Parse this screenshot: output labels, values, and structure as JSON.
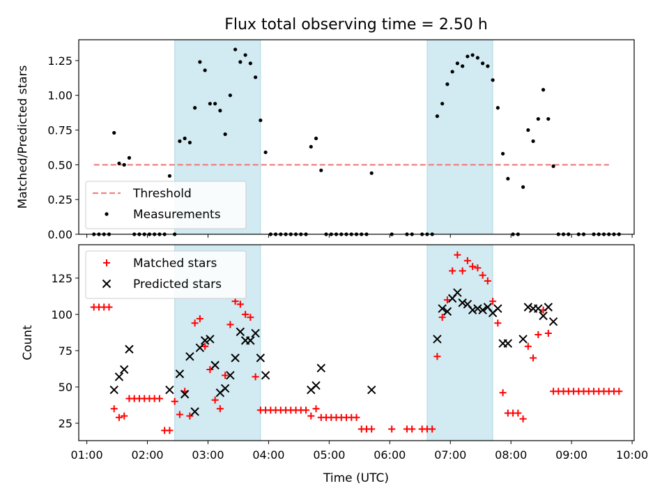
{
  "figure": {
    "title": "Flux total observing time = 2.50 h",
    "xlabel": "Time (UTC)"
  },
  "chart_data": [
    {
      "type": "scatter",
      "ylabel": "Matched/Predicted stars",
      "xlim": [
        "00:52",
        "10:02"
      ],
      "ylim": [
        0,
        1.4
      ],
      "yticks": [
        "0.00",
        "0.25",
        "0.50",
        "0.75",
        "1.00",
        "1.25"
      ],
      "grid": false,
      "legend_position": "lower-left",
      "shaded_intervals": [
        [
          "02:27",
          "03:52"
        ],
        [
          "06:37",
          "07:42"
        ]
      ],
      "series": [
        {
          "name": "Threshold",
          "kind": "dashed-line",
          "color": "#f08080",
          "x": [
            "01:07",
            "09:37"
          ],
          "y": [
            0.5,
            0.5
          ]
        },
        {
          "name": "Measurements",
          "kind": "dots",
          "color": "#000000",
          "points": [
            [
              "01:07",
              0
            ],
            [
              "01:12",
              0
            ],
            [
              "01:17",
              0
            ],
            [
              "01:22",
              0
            ],
            [
              "01:27",
              0.73
            ],
            [
              "01:32",
              0.51
            ],
            [
              "01:37",
              0.5
            ],
            [
              "01:42",
              0.55
            ],
            [
              "01:47",
              0
            ],
            [
              "01:52",
              0
            ],
            [
              "01:57",
              0
            ],
            [
              "02:02",
              0
            ],
            [
              "02:07",
              0
            ],
            [
              "02:12",
              0
            ],
            [
              "02:17",
              0
            ],
            [
              "02:22",
              0.42
            ],
            [
              "02:27",
              0
            ],
            [
              "02:32",
              0.67
            ],
            [
              "02:37",
              0.69
            ],
            [
              "02:42",
              0.66
            ],
            [
              "02:47",
              0.91
            ],
            [
              "02:52",
              1.24
            ],
            [
              "02:57",
              1.18
            ],
            [
              "03:02",
              0.94
            ],
            [
              "03:07",
              0.94
            ],
            [
              "03:12",
              0.89
            ],
            [
              "03:17",
              0.72
            ],
            [
              "03:22",
              1.0
            ],
            [
              "03:27",
              1.33
            ],
            [
              "03:32",
              1.24
            ],
            [
              "03:37",
              1.29
            ],
            [
              "03:42",
              1.23
            ],
            [
              "03:47",
              1.13
            ],
            [
              "03:52",
              0.82
            ],
            [
              "03:57",
              0.59
            ],
            [
              "04:02",
              0
            ],
            [
              "04:07",
              0
            ],
            [
              "04:12",
              0
            ],
            [
              "04:17",
              0
            ],
            [
              "04:22",
              0
            ],
            [
              "04:27",
              0
            ],
            [
              "04:32",
              0
            ],
            [
              "04:37",
              0
            ],
            [
              "04:42",
              0.63
            ],
            [
              "04:47",
              0.69
            ],
            [
              "04:52",
              0.46
            ],
            [
              "04:57",
              0
            ],
            [
              "05:02",
              0
            ],
            [
              "05:07",
              0
            ],
            [
              "05:12",
              0
            ],
            [
              "05:17",
              0
            ],
            [
              "05:22",
              0
            ],
            [
              "05:27",
              0
            ],
            [
              "05:32",
              0
            ],
            [
              "05:37",
              0
            ],
            [
              "05:42",
              0.44
            ],
            [
              "06:02",
              0
            ],
            [
              "06:17",
              0
            ],
            [
              "06:22",
              0
            ],
            [
              "06:32",
              0
            ],
            [
              "06:37",
              0
            ],
            [
              "06:42",
              0
            ],
            [
              "06:47",
              0.85
            ],
            [
              "06:52",
              0.94
            ],
            [
              "06:57",
              1.08
            ],
            [
              "07:02",
              1.17
            ],
            [
              "07:07",
              1.23
            ],
            [
              "07:12",
              1.21
            ],
            [
              "07:17",
              1.28
            ],
            [
              "07:22",
              1.29
            ],
            [
              "07:27",
              1.27
            ],
            [
              "07:32",
              1.23
            ],
            [
              "07:37",
              1.21
            ],
            [
              "07:42",
              1.11
            ],
            [
              "07:47",
              0.91
            ],
            [
              "07:52",
              0.58
            ],
            [
              "07:57",
              0.4
            ],
            [
              "08:02",
              0
            ],
            [
              "08:07",
              0
            ],
            [
              "08:12",
              0.34
            ],
            [
              "08:17",
              0.75
            ],
            [
              "08:22",
              0.67
            ],
            [
              "08:27",
              0.83
            ],
            [
              "08:32",
              1.04
            ],
            [
              "08:37",
              0.83
            ],
            [
              "08:42",
              0.49
            ],
            [
              "08:47",
              0
            ],
            [
              "08:52",
              0
            ],
            [
              "08:57",
              0
            ],
            [
              "09:07",
              0
            ],
            [
              "09:12",
              0
            ],
            [
              "09:22",
              0
            ],
            [
              "09:27",
              0
            ],
            [
              "09:32",
              0
            ],
            [
              "09:37",
              0
            ],
            [
              "09:42",
              0
            ],
            [
              "09:47",
              0
            ]
          ]
        }
      ]
    },
    {
      "type": "scatter",
      "ylabel": "Count",
      "xlim": [
        "00:52",
        "10:02"
      ],
      "ylim": [
        13,
        148
      ],
      "yticks": [
        "25",
        "50",
        "75",
        "100",
        "125"
      ],
      "xticks": [
        "01:00",
        "02:00",
        "03:00",
        "04:00",
        "05:00",
        "06:00",
        "07:00",
        "08:00",
        "09:00",
        "10:00"
      ],
      "grid": false,
      "legend_position": "upper-left",
      "shaded_intervals": [
        [
          "02:27",
          "03:52"
        ],
        [
          "06:37",
          "07:42"
        ]
      ],
      "series": [
        {
          "name": "Matched stars",
          "marker": "plus",
          "color": "#ff0000",
          "points": [
            [
              "01:07",
              105
            ],
            [
              "01:12",
              105
            ],
            [
              "01:17",
              105
            ],
            [
              "01:22",
              105
            ],
            [
              "01:27",
              35
            ],
            [
              "01:32",
              29
            ],
            [
              "01:37",
              30
            ],
            [
              "01:42",
              42
            ],
            [
              "01:47",
              42
            ],
            [
              "01:52",
              42
            ],
            [
              "01:57",
              42
            ],
            [
              "02:02",
              42
            ],
            [
              "02:07",
              42
            ],
            [
              "02:12",
              42
            ],
            [
              "02:17",
              20
            ],
            [
              "02:22",
              20
            ],
            [
              "02:27",
              40
            ],
            [
              "02:32",
              31
            ],
            [
              "02:37",
              47
            ],
            [
              "02:42",
              30
            ],
            [
              "02:47",
              94
            ],
            [
              "02:52",
              97
            ],
            [
              "02:57",
              78
            ],
            [
              "03:02",
              62
            ],
            [
              "03:07",
              41
            ],
            [
              "03:12",
              35
            ],
            [
              "03:17",
              58
            ],
            [
              "03:22",
              93
            ],
            [
              "03:27",
              109
            ],
            [
              "03:32",
              107
            ],
            [
              "03:37",
              100
            ],
            [
              "03:42",
              98
            ],
            [
              "03:47",
              57
            ],
            [
              "03:52",
              34
            ],
            [
              "03:57",
              34
            ],
            [
              "04:02",
              34
            ],
            [
              "04:07",
              34
            ],
            [
              "04:12",
              34
            ],
            [
              "04:17",
              34
            ],
            [
              "04:22",
              34
            ],
            [
              "04:27",
              34
            ],
            [
              "04:32",
              34
            ],
            [
              "04:37",
              34
            ],
            [
              "04:42",
              30
            ],
            [
              "04:47",
              35
            ],
            [
              "04:52",
              29
            ],
            [
              "04:57",
              29
            ],
            [
              "05:02",
              29
            ],
            [
              "05:07",
              29
            ],
            [
              "05:12",
              29
            ],
            [
              "05:17",
              29
            ],
            [
              "05:22",
              29
            ],
            [
              "05:27",
              29
            ],
            [
              "05:32",
              21
            ],
            [
              "05:37",
              21
            ],
            [
              "05:42",
              21
            ],
            [
              "06:02",
              21
            ],
            [
              "06:17",
              21
            ],
            [
              "06:22",
              21
            ],
            [
              "06:32",
              21
            ],
            [
              "06:37",
              21
            ],
            [
              "06:42",
              21
            ],
            [
              "06:47",
              71
            ],
            [
              "06:52",
              98
            ],
            [
              "06:57",
              110
            ],
            [
              "07:02",
              130
            ],
            [
              "07:07",
              141
            ],
            [
              "07:12",
              130
            ],
            [
              "07:17",
              137
            ],
            [
              "07:22",
              133
            ],
            [
              "07:27",
              132
            ],
            [
              "07:32",
              127
            ],
            [
              "07:37",
              123
            ],
            [
              "07:42",
              109
            ],
            [
              "07:47",
              94
            ],
            [
              "07:52",
              46
            ],
            [
              "07:57",
              32
            ],
            [
              "08:02",
              32
            ],
            [
              "08:07",
              32
            ],
            [
              "08:12",
              28
            ],
            [
              "08:17",
              78
            ],
            [
              "08:22",
              70
            ],
            [
              "08:27",
              86
            ],
            [
              "08:32",
              103
            ],
            [
              "08:37",
              87
            ],
            [
              "08:42",
              47
            ],
            [
              "08:47",
              47
            ],
            [
              "08:52",
              47
            ],
            [
              "08:57",
              47
            ],
            [
              "09:02",
              47
            ],
            [
              "09:07",
              47
            ],
            [
              "09:12",
              47
            ],
            [
              "09:17",
              47
            ],
            [
              "09:22",
              47
            ],
            [
              "09:27",
              47
            ],
            [
              "09:32",
              47
            ],
            [
              "09:37",
              47
            ],
            [
              "09:42",
              47
            ],
            [
              "09:47",
              47
            ]
          ]
        },
        {
          "name": "Predicted stars",
          "marker": "x",
          "color": "#000000",
          "points": [
            [
              "01:27",
              48
            ],
            [
              "01:32",
              57
            ],
            [
              "01:37",
              62
            ],
            [
              "01:42",
              76
            ],
            [
              "02:22",
              48
            ],
            [
              "02:32",
              59
            ],
            [
              "02:37",
              45
            ],
            [
              "02:42",
              71
            ],
            [
              "02:47",
              33
            ],
            [
              "02:52",
              77
            ],
            [
              "02:57",
              82
            ],
            [
              "03:02",
              83
            ],
            [
              "03:07",
              65
            ],
            [
              "03:12",
              46
            ],
            [
              "03:17",
              49
            ],
            [
              "03:22",
              58
            ],
            [
              "03:27",
              70
            ],
            [
              "03:32",
              88
            ],
            [
              "03:37",
              82
            ],
            [
              "03:42",
              82
            ],
            [
              "03:47",
              87
            ],
            [
              "03:52",
              70
            ],
            [
              "03:57",
              58
            ],
            [
              "04:42",
              48
            ],
            [
              "04:47",
              51
            ],
            [
              "04:52",
              63
            ],
            [
              "05:42",
              48
            ],
            [
              "06:47",
              83
            ],
            [
              "06:52",
              104
            ],
            [
              "06:57",
              102
            ],
            [
              "07:02",
              111
            ],
            [
              "07:07",
              115
            ],
            [
              "07:12",
              108
            ],
            [
              "07:17",
              107
            ],
            [
              "07:22",
              103
            ],
            [
              "07:27",
              104
            ],
            [
              "07:32",
              103
            ],
            [
              "07:37",
              105
            ],
            [
              "07:42",
              101
            ],
            [
              "07:47",
              104
            ],
            [
              "07:52",
              80
            ],
            [
              "07:57",
              80
            ],
            [
              "08:12",
              83
            ],
            [
              "08:17",
              105
            ],
            [
              "08:22",
              104
            ],
            [
              "08:27",
              104
            ],
            [
              "08:32",
              99
            ],
            [
              "08:37",
              105
            ],
            [
              "08:42",
              95
            ]
          ]
        }
      ]
    }
  ]
}
